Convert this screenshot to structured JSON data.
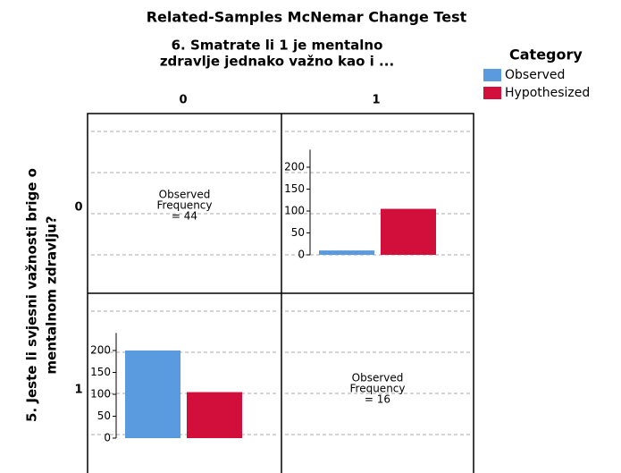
{
  "chart_data": {
    "type": "bar",
    "title": "Related-Samples McNemar Change Test",
    "column_title": [
      "6. Smatrate li 1 je mentalno",
      "zdravlje jednako važno kao i ..."
    ],
    "row_title": [
      "5. Jeste li svjesni važnosti brige o",
      "mentalnom zdravlju?"
    ],
    "column_categories": [
      "0",
      "1"
    ],
    "row_categories": [
      "0",
      "1"
    ],
    "legend_title": "Category",
    "series": [
      {
        "name": "Observed",
        "color": "#5a9be0"
      },
      {
        "name": "Hypothesized",
        "color": "#d20f3a"
      }
    ],
    "panels": [
      {
        "text": [
          "Observed",
          "Frequency",
          "= 44"
        ]
      },
      {
        "values": [
          10,
          105
        ]
      },
      {
        "values": [
          200,
          105
        ]
      },
      {
        "text": [
          "Observed",
          "Frequency",
          "= 16"
        ]
      }
    ],
    "ylim": [
      0,
      240
    ],
    "yticks": [
      0,
      50,
      100,
      150,
      200
    ],
    "grid": true
  }
}
